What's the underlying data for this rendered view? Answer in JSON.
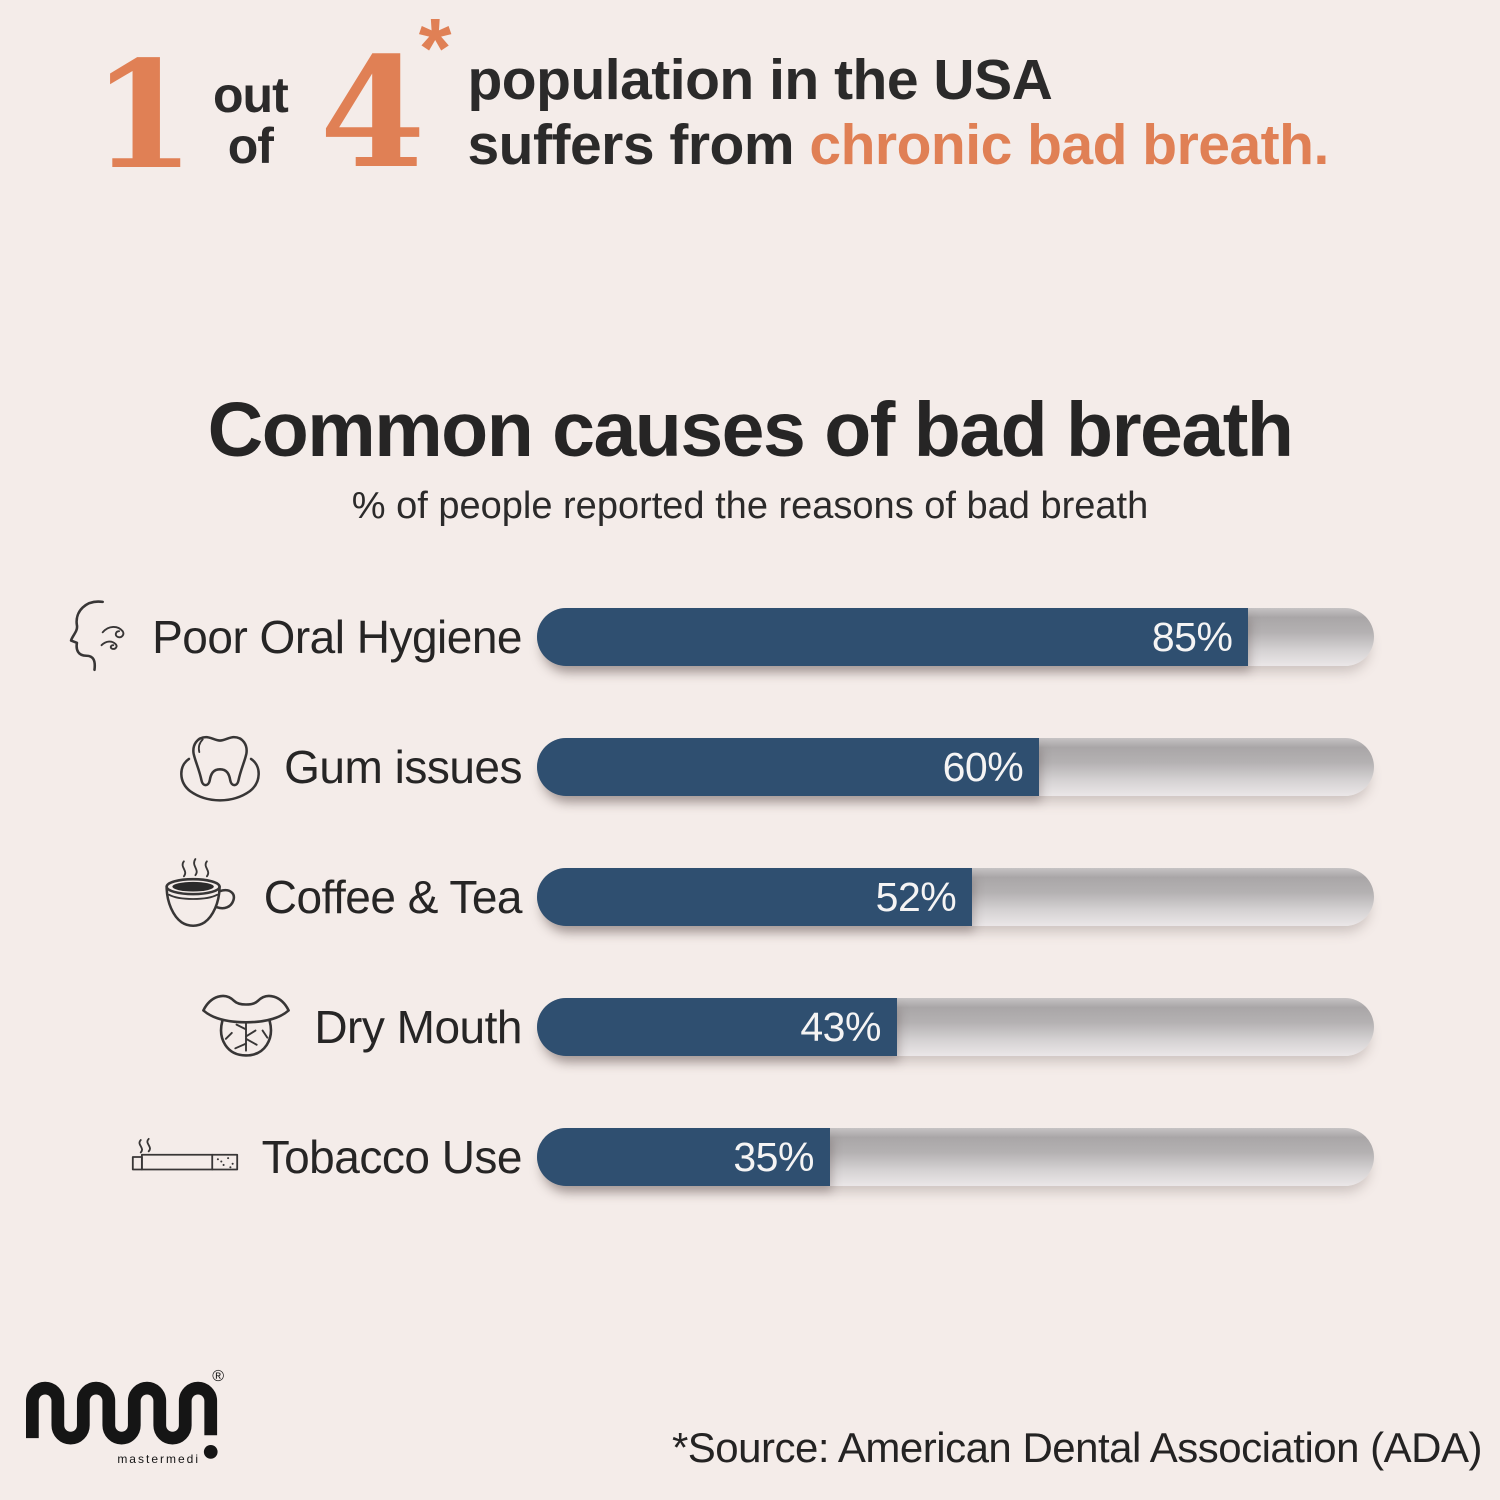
{
  "background": "#f4ece9",
  "colors": {
    "accent": "#e08055",
    "bar": "#2f4f70",
    "text_dark": "#2b2a2a"
  },
  "header": {
    "numerator": "1",
    "out_label": "out",
    "of_label": "of",
    "denominator": "4",
    "asterisk": "*",
    "line1": "population in the USA",
    "line2_prefix": "suffers from ",
    "line2_highlight": "chronic bad breath."
  },
  "chart": {
    "title": "Common causes of bad breath",
    "subtitle": "% of people reported the reasons of bad breath",
    "rows": [
      {
        "label": "Poor Oral Hygiene",
        "display": "85%",
        "icon": "bad-breath-icon"
      },
      {
        "label": "Gum issues",
        "display": "60%",
        "icon": "tooth-gum-icon"
      },
      {
        "label": "Coffee & Tea",
        "display": "52%",
        "icon": "coffee-cup-icon"
      },
      {
        "label": "Dry Mouth",
        "display": "43%",
        "icon": "dry-mouth-icon"
      },
      {
        "label": "Tobacco Use",
        "display": "35%",
        "icon": "cigarette-icon"
      }
    ]
  },
  "footer": {
    "logo_text": "mastermedi",
    "registered_mark": "®",
    "source": "*Source: American Dental Association (ADA)"
  },
  "chart_data": {
    "type": "bar",
    "orientation": "horizontal",
    "title": "Common causes of bad breath",
    "subtitle": "% of people reported the reasons of bad breath",
    "categories": [
      "Poor Oral Hygiene",
      "Gum issues",
      "Coffee & Tea",
      "Dry Mouth",
      "Tobacco Use"
    ],
    "values": [
      85,
      60,
      52,
      43,
      35
    ],
    "value_labels": [
      "85%",
      "60%",
      "52%",
      "43%",
      "35%"
    ],
    "unit": "%",
    "xlim": [
      0,
      100
    ],
    "bar_color": "#2f4f70",
    "track_style": "gray-gradient-pill",
    "grid": false,
    "legend": false,
    "source": "*Source: American Dental Association (ADA)",
    "context_stat": "1 out of 4 population in the USA suffers from chronic bad breath."
  }
}
